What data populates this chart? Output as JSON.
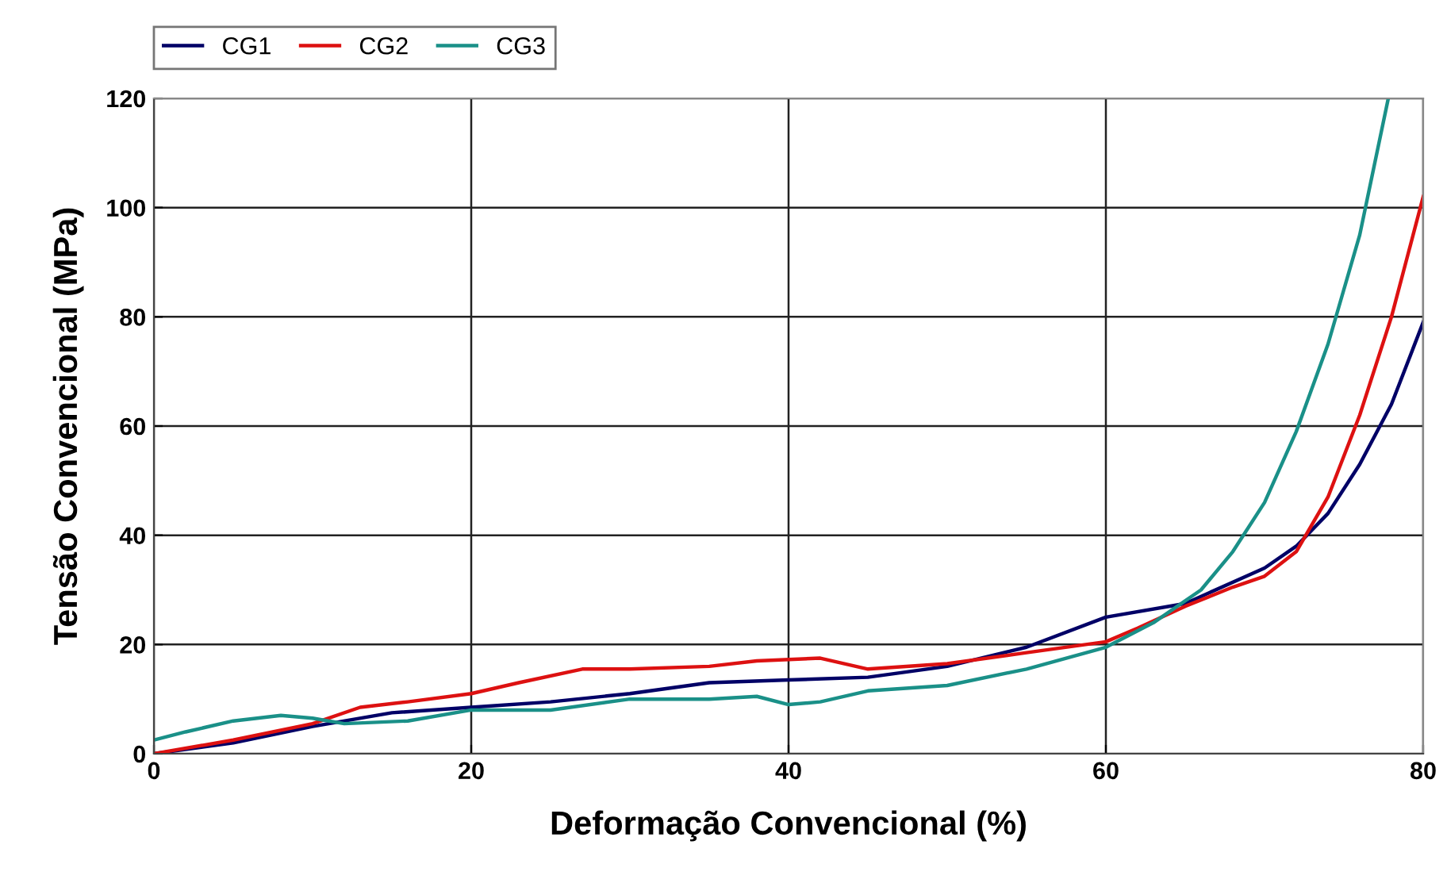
{
  "chart_data": {
    "type": "line",
    "xlabel": "Deformação Convencional (%)",
    "ylabel": "Tensão Convencional (MPa)",
    "xlim": [
      0,
      80
    ],
    "ylim": [
      0,
      120
    ],
    "xticks": [
      0,
      20,
      40,
      60,
      80
    ],
    "yticks": [
      0,
      20,
      40,
      60,
      80,
      100,
      120
    ],
    "grid": true,
    "legend": "top left",
    "line_style": "solid",
    "marker": "none",
    "series": [
      {
        "name": "CG1",
        "color": "#000066",
        "x": [
          0,
          5,
          10,
          15,
          20,
          25,
          30,
          35,
          40,
          45,
          50,
          55,
          60,
          65,
          70,
          72,
          74,
          76,
          78,
          80
        ],
        "values": [
          0,
          2,
          5,
          7.5,
          8.5,
          9.5,
          11,
          13,
          13.5,
          14,
          16,
          19.5,
          25,
          27.5,
          34,
          38,
          44,
          53,
          64,
          79
        ]
      },
      {
        "name": "CG2",
        "color": "#dd1111",
        "x": [
          0,
          5,
          10,
          13,
          16,
          20,
          23,
          27,
          30,
          35,
          38,
          42,
          45,
          50,
          55,
          60,
          62,
          65,
          68,
          70,
          72,
          74,
          76,
          78,
          80
        ],
        "values": [
          0,
          2.5,
          5.5,
          8.5,
          9.5,
          11,
          13,
          15.5,
          15.5,
          16,
          17,
          17.5,
          15.5,
          16.5,
          18.5,
          20.5,
          23,
          27,
          30.5,
          32.5,
          37,
          47,
          62,
          80,
          102
        ]
      },
      {
        "name": "CG3",
        "color": "#1a9088",
        "x": [
          0,
          2,
          5,
          8,
          10,
          12,
          16,
          20,
          25,
          30,
          35,
          38,
          40,
          42,
          45,
          50,
          55,
          60,
          63,
          66,
          68,
          70,
          72,
          74,
          76,
          77.8
        ],
        "values": [
          2.5,
          4,
          6,
          7,
          6.5,
          5.5,
          6,
          8,
          8,
          10,
          10,
          10.5,
          9,
          9.5,
          11.5,
          12.5,
          15.5,
          19.5,
          24,
          30,
          37,
          46,
          59,
          75,
          95,
          120
        ]
      }
    ]
  }
}
